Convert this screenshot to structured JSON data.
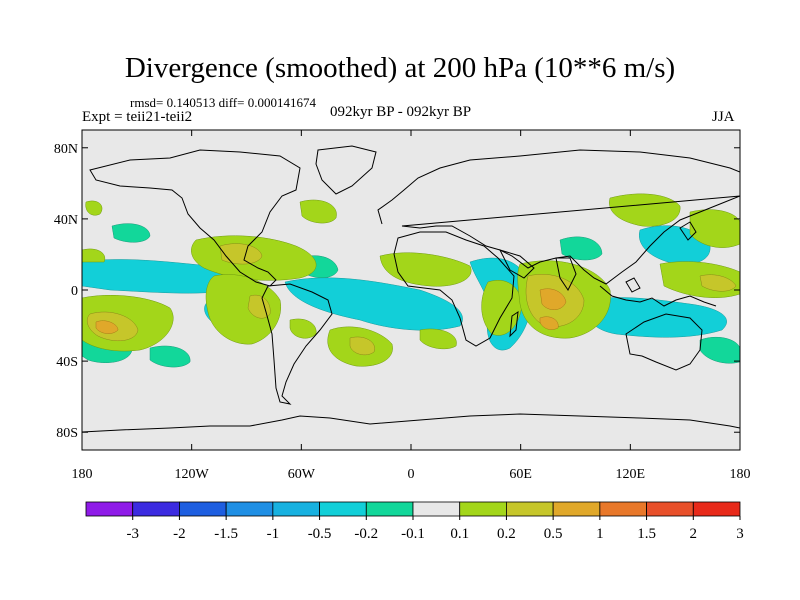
{
  "title": "Divergence (smoothed) at 200 hPa (10**6 m/s)",
  "stats": "rmsd= 0.140513 diff= 0.000141674",
  "expt": "Expt = teii21-teii2",
  "period": "092kyr BP - 092kyr BP",
  "season": "JJA",
  "axes": {
    "lat_ticks": [
      "80N",
      "40N",
      "0",
      "40S",
      "80S"
    ],
    "lon_ticks": [
      "180",
      "120W",
      "60W",
      "0",
      "60E",
      "120E",
      "180"
    ]
  },
  "colorbar": {
    "labels": [
      "-3",
      "-2",
      "-1.5",
      "-1",
      "-0.5",
      "-0.2",
      "-0.1",
      "0.1",
      "0.2",
      "0.5",
      "1",
      "1.5",
      "2",
      "3"
    ],
    "colors": [
      "#8f1be8",
      "#3c2be0",
      "#1e5ee0",
      "#1f8fe4",
      "#17b1e0",
      "#12cfd8",
      "#12d79a",
      "#e8e8e8",
      "#a3d61a",
      "#c6c62a",
      "#e0a82a",
      "#e8782a",
      "#e8502a",
      "#e82a1a"
    ]
  },
  "colors": {
    "background": "#e8e8e8",
    "positive_weak": "#a3d61a",
    "positive_mid": "#c6c62a",
    "positive_strong": "#e0a82a",
    "negative_weak": "#12d79a",
    "negative_mid": "#12cfd8",
    "coastline": "#000000"
  }
}
